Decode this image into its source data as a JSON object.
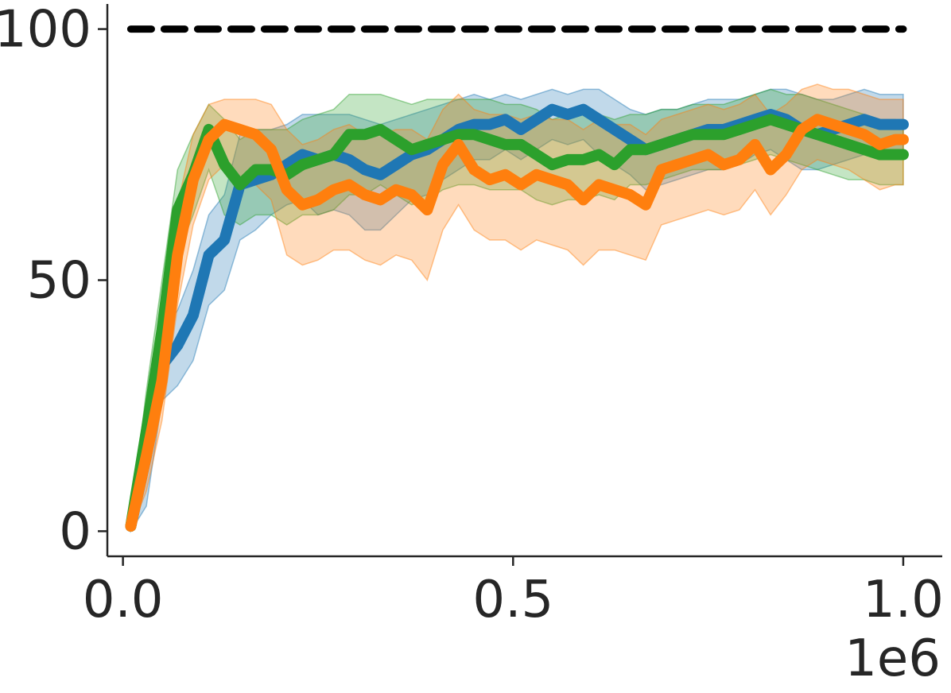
{
  "chart_data": {
    "type": "line",
    "title": "",
    "xlabel": "",
    "ylabel": "",
    "x_offset_label": "1e6",
    "xlim": [
      -0.02,
      1.05
    ],
    "ylim": [
      -5,
      105
    ],
    "x_ticks": [
      0.0,
      0.5,
      1.0
    ],
    "x_tick_labels": [
      "0.0",
      "0.5",
      "1.0"
    ],
    "y_ticks": [
      0,
      50,
      100
    ],
    "y_tick_labels": [
      "0",
      "50",
      "100"
    ],
    "grid": false,
    "reference_line": {
      "y": 100,
      "x_range": [
        0.01,
        1.0
      ],
      "color": "#000000",
      "style": "dashed"
    },
    "x": [
      0.01,
      0.03,
      0.05,
      0.07,
      0.09,
      0.11,
      0.13,
      0.15,
      0.17,
      0.19,
      0.21,
      0.23,
      0.25,
      0.27,
      0.29,
      0.31,
      0.33,
      0.35,
      0.37,
      0.39,
      0.41,
      0.43,
      0.45,
      0.47,
      0.49,
      0.51,
      0.53,
      0.55,
      0.57,
      0.59,
      0.61,
      0.63,
      0.65,
      0.67,
      0.69,
      0.71,
      0.73,
      0.75,
      0.77,
      0.79,
      0.81,
      0.83,
      0.85,
      0.87,
      0.89,
      0.91,
      0.93,
      0.95,
      0.97,
      0.99,
      1.0
    ],
    "series": [
      {
        "color": "#1f77b4",
        "values": [
          1,
          15,
          33,
          37,
          43,
          55,
          58,
          69,
          70,
          71,
          73,
          75,
          74,
          75,
          74,
          72,
          71,
          73,
          75,
          76,
          78,
          80,
          81,
          81,
          82,
          80,
          82,
          84,
          83,
          84,
          82,
          80,
          78,
          76,
          77,
          78,
          79,
          80,
          80,
          81,
          82,
          83,
          82,
          80,
          79,
          80,
          81,
          82,
          81,
          81,
          81
        ],
        "lower": [
          0,
          5,
          26,
          29,
          34,
          45,
          48,
          58,
          60,
          63,
          65,
          66,
          63,
          64,
          63,
          60,
          60,
          63,
          66,
          67,
          70,
          72,
          74,
          74,
          76,
          74,
          76,
          78,
          77,
          78,
          75,
          73,
          71,
          68,
          69,
          70,
          71,
          72,
          72,
          73,
          75,
          76,
          74,
          72,
          72,
          73,
          74,
          75,
          74,
          74,
          74
        ],
        "upper": [
          2,
          25,
          40,
          44,
          52,
          63,
          67,
          79,
          80,
          80,
          81,
          83,
          83,
          83,
          83,
          82,
          81,
          82,
          83,
          84,
          85,
          86,
          87,
          86,
          87,
          86,
          87,
          88,
          87,
          88,
          88,
          86,
          84,
          83,
          84,
          84,
          85,
          86,
          86,
          86,
          87,
          88,
          88,
          87,
          86,
          86,
          87,
          88,
          87,
          87,
          87
        ]
      },
      {
        "color": "#2ca02c",
        "values": [
          1,
          20,
          40,
          64,
          71,
          80,
          73,
          69,
          72,
          72,
          71,
          73,
          74,
          75,
          79,
          79,
          80,
          78,
          76,
          77,
          78,
          79,
          79,
          78,
          77,
          77,
          75,
          73,
          74,
          74,
          75,
          73,
          76,
          76,
          77,
          78,
          79,
          79,
          79,
          80,
          81,
          82,
          81,
          80,
          79,
          78,
          77,
          76,
          75,
          75,
          75
        ],
        "lower": [
          0,
          12,
          30,
          55,
          63,
          72,
          63,
          61,
          63,
          63,
          61,
          63,
          63,
          64,
          67,
          67,
          69,
          67,
          65,
          66,
          68,
          69,
          69,
          68,
          68,
          68,
          66,
          65,
          66,
          66,
          67,
          66,
          69,
          69,
          70,
          71,
          72,
          72,
          72,
          73,
          74,
          75,
          74,
          73,
          72,
          71,
          70,
          70,
          69,
          69,
          69
        ],
        "upper": [
          2,
          28,
          50,
          72,
          79,
          85,
          82,
          78,
          80,
          80,
          80,
          82,
          83,
          84,
          87,
          87,
          87,
          86,
          85,
          86,
          86,
          86,
          86,
          86,
          85,
          85,
          84,
          82,
          83,
          83,
          83,
          82,
          83,
          83,
          84,
          84,
          85,
          85,
          85,
          86,
          87,
          88,
          87,
          87,
          86,
          85,
          84,
          83,
          82,
          82,
          81
        ]
      },
      {
        "color": "#ff7f0e",
        "values": [
          1,
          15,
          30,
          55,
          70,
          78,
          81,
          80,
          79,
          76,
          68,
          65,
          66,
          68,
          69,
          67,
          66,
          68,
          67,
          64,
          73,
          77,
          72,
          70,
          71,
          69,
          71,
          70,
          69,
          66,
          69,
          68,
          67,
          65,
          72,
          73,
          74,
          75,
          73,
          74,
          77,
          72,
          75,
          80,
          82,
          81,
          80,
          79,
          77,
          78,
          78
        ],
        "lower": [
          0,
          8,
          22,
          45,
          61,
          70,
          73,
          70,
          69,
          66,
          55,
          53,
          54,
          56,
          56,
          54,
          53,
          55,
          54,
          50,
          60,
          65,
          60,
          58,
          58,
          56,
          58,
          57,
          56,
          53,
          56,
          56,
          55,
          54,
          61,
          62,
          63,
          64,
          63,
          64,
          68,
          63,
          67,
          72,
          74,
          73,
          72,
          70,
          68,
          69,
          69
        ],
        "upper": [
          2,
          22,
          38,
          65,
          79,
          85,
          86,
          86,
          86,
          85,
          80,
          77,
          78,
          80,
          81,
          79,
          79,
          80,
          80,
          78,
          84,
          87,
          84,
          83,
          83,
          82,
          83,
          82,
          82,
          80,
          82,
          81,
          81,
          79,
          82,
          83,
          84,
          85,
          84,
          85,
          87,
          83,
          85,
          88,
          89,
          88,
          88,
          87,
          86,
          86,
          86
        ]
      }
    ]
  }
}
